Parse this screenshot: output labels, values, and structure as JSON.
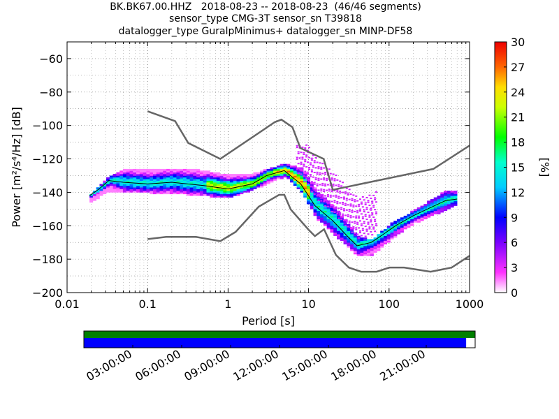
{
  "title_lines": [
    "BK.BK67.00.HHZ   2018-08-23 -- 2018-08-23  (46/46 segments)",
    "sensor_type CMG-3T sensor_sn T39818",
    "datalogger_type GuralpMinimus+ datalogger_sn MINP-DF58"
  ],
  "colors": {
    "high_noise_model": "#666666",
    "low_noise_model": "#666666",
    "mean_curve": "#000000",
    "coverage_top": "#008000",
    "coverage_bottom": "#0000ff"
  },
  "chart_data": {
    "type": "heatmap",
    "xlabel": "Period [s]",
    "ylabel": "Power [m²/s⁴/Hz] [dB]",
    "xscale": "log",
    "xlim": [
      0.01,
      1000
    ],
    "ylim": [
      -200,
      -50
    ],
    "x_ticks": [
      0.01,
      0.1,
      1,
      10,
      100,
      1000
    ],
    "x_tick_labels": [
      "0.01",
      "0.1",
      "1",
      "10",
      "100",
      "1000"
    ],
    "y_ticks": [
      -200,
      -180,
      -160,
      -140,
      -120,
      -100,
      -80,
      -60
    ],
    "y_tick_labels": [
      "−200",
      "−180",
      "−160",
      "−140",
      "−120",
      "−100",
      "−80",
      "−60"
    ],
    "grid": true,
    "colorbar": {
      "label": "[%]",
      "range": [
        0,
        30
      ],
      "ticks": [
        0,
        3,
        6,
        9,
        12,
        15,
        18,
        21,
        24,
        27,
        30
      ],
      "tick_labels": [
        "0",
        "3",
        "6",
        "9",
        "12",
        "15",
        "18",
        "21",
        "24",
        "27",
        "30"
      ]
    },
    "series": [
      {
        "role": "high_noise_model",
        "x": [
          0.1,
          0.22,
          0.32,
          0.8,
          3.8,
          4.6,
          6.3,
          7.9,
          15.4,
          20,
          354.8,
          1000
        ],
        "y": [
          -91.5,
          -97.4,
          -110.5,
          -120,
          -98,
          -96.5,
          -101,
          -113.5,
          -120,
          -138.5,
          -126,
          -112
        ]
      },
      {
        "role": "low_noise_model",
        "x": [
          0.1,
          0.17,
          0.4,
          0.8,
          1.24,
          2.4,
          4.3,
          5,
          6,
          10,
          12,
          15.6,
          21.9,
          31.6,
          45,
          70,
          101,
          154,
          328,
          600,
          1000
        ],
        "y": [
          -168,
          -166.7,
          -166.7,
          -169.2,
          -163.7,
          -148.6,
          -141.5,
          -141.5,
          -150.2,
          -162.4,
          -166.2,
          -162.1,
          -177.5,
          -185,
          -187.5,
          -187.5,
          -185,
          -185,
          -187.5,
          -185,
          -178
        ]
      },
      {
        "role": "mean_psd",
        "x": [
          0.019,
          0.025,
          0.033,
          0.05,
          0.1,
          0.2,
          0.5,
          1,
          2,
          3,
          5,
          8,
          12,
          20,
          30,
          40,
          60,
          80,
          120,
          200,
          300,
          500,
          700
        ],
        "y": [
          -142,
          -138,
          -133,
          -134,
          -135,
          -134,
          -136,
          -138,
          -135,
          -130,
          -127,
          -135,
          -148,
          -157,
          -166,
          -172,
          -170,
          -166,
          -160,
          -154,
          -150,
          -145,
          -144
        ]
      }
    ],
    "psd_envelope": {
      "x": [
        0.019,
        0.03,
        0.05,
        0.1,
        0.3,
        1,
        2,
        5,
        8,
        12,
        20,
        40,
        60,
        100,
        200,
        500,
        700
      ],
      "upper": [
        -142,
        -133,
        -127,
        -128,
        -127,
        -131,
        -130,
        -124,
        -127,
        -140,
        -150,
        -168,
        -170,
        -160,
        -152,
        -140,
        -140
      ],
      "lower": [
        -146,
        -139,
        -140,
        -140,
        -141,
        -143,
        -138,
        -130,
        -140,
        -155,
        -165,
        -178,
        -177,
        -168,
        -158,
        -150,
        -147
      ]
    },
    "coverage_time_ticks": [
      "03:00:00",
      "06:00:00",
      "09:00:00",
      "12:00:00",
      "15:00:00",
      "18:00:00",
      "21:00:00"
    ],
    "coverage_fraction": 0.977
  }
}
